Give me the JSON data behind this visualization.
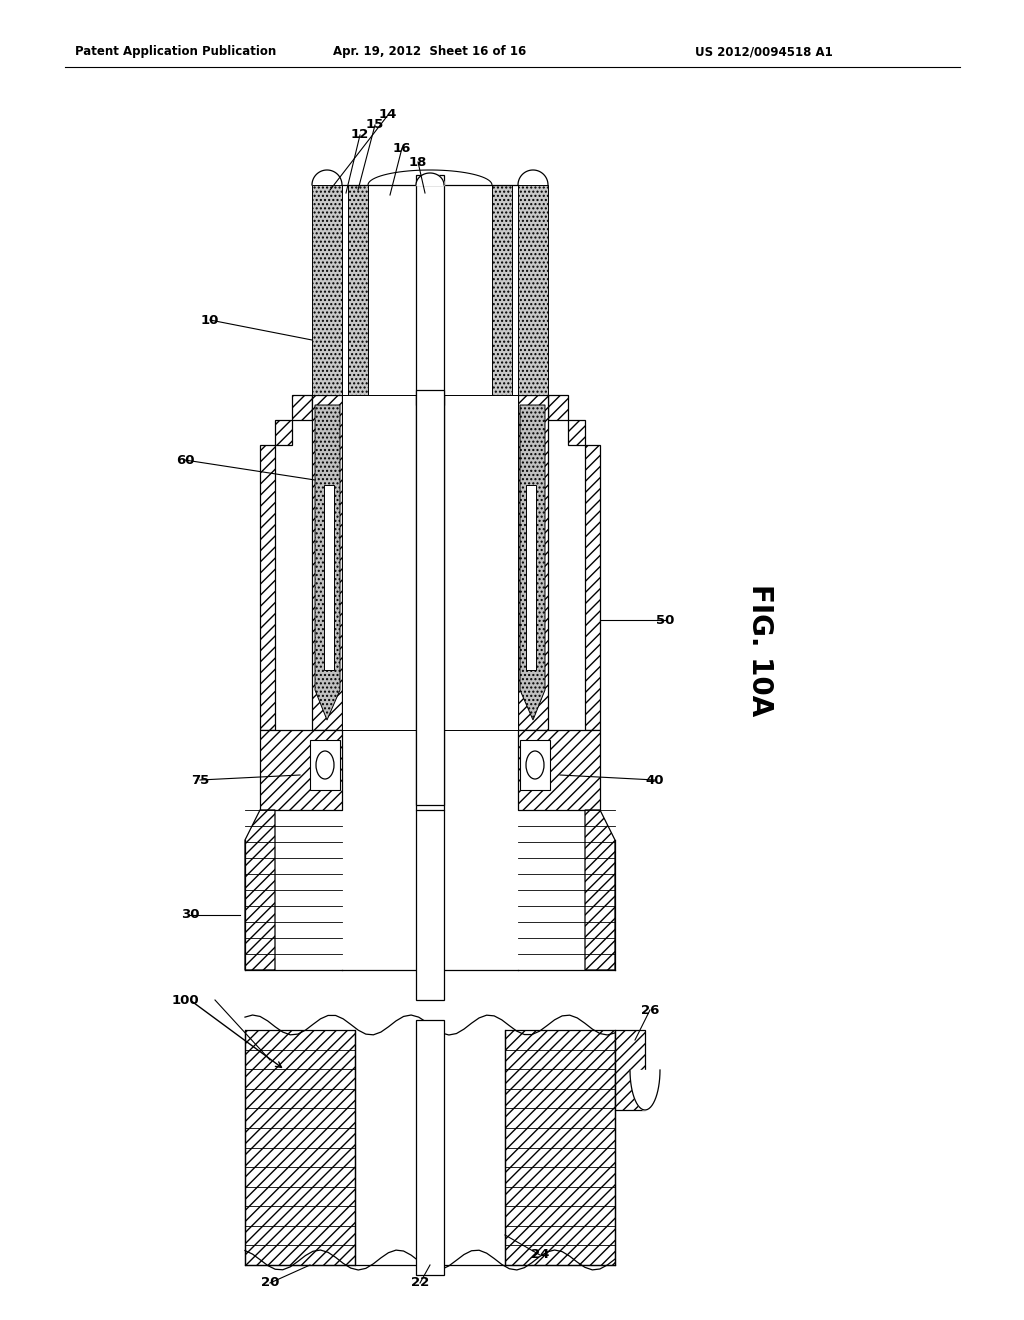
{
  "background_color": "#ffffff",
  "header_left": "Patent Application Publication",
  "header_mid": "Apr. 19, 2012  Sheet 16 of 16",
  "header_right": "US 2012/0094518 A1",
  "fig_label": "FIG. 10A",
  "text_color": "#000000"
}
